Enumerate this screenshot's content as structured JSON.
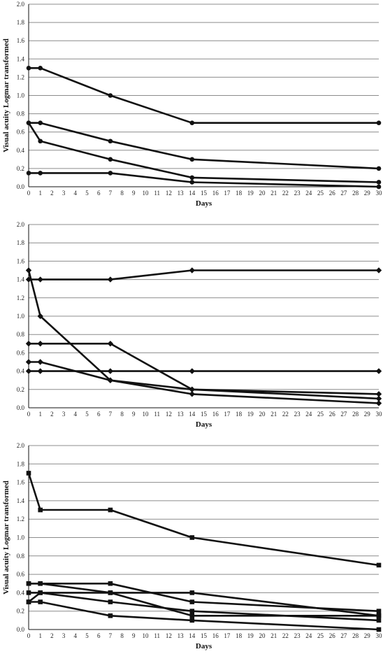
{
  "chart_data": [
    {
      "type": "line",
      "xlabel": "Days",
      "ylabel": "Visual acuity Logmar transformed",
      "ylim": [
        0,
        2
      ],
      "xlim": [
        0,
        30
      ],
      "y_ticks": [
        "0.0",
        "0.2",
        "0.4",
        "0.6",
        "0.8",
        "1.0",
        "1.2",
        "1.4",
        "1.6",
        "1.8",
        "2.0"
      ],
      "x_ticks": [
        "0",
        "1",
        "2",
        "3",
        "4",
        "5",
        "6",
        "7",
        "8",
        "9",
        "10",
        "11",
        "12",
        "13",
        "14",
        "15",
        "16",
        "17",
        "18",
        "19",
        "20",
        "21",
        "22",
        "23",
        "24",
        "25",
        "26",
        "27",
        "28",
        "29",
        "30"
      ],
      "grid": "horizontal",
      "marker": "circle",
      "series": [
        {
          "x": [
            0,
            1,
            7,
            14,
            30
          ],
          "y": [
            1.3,
            1.3,
            1.0,
            0.7,
            0.7
          ]
        },
        {
          "x": [
            0,
            1,
            7,
            14,
            30
          ],
          "y": [
            0.7,
            0.7,
            0.5,
            0.3,
            0.2
          ]
        },
        {
          "x": [
            0,
            1,
            7,
            14,
            30
          ],
          "y": [
            0.7,
            0.5,
            0.3,
            0.1,
            0.05
          ]
        },
        {
          "x": [
            0,
            1,
            7,
            14,
            30
          ],
          "y": [
            0.15,
            0.15,
            0.15,
            0.05,
            0.0
          ]
        }
      ]
    },
    {
      "type": "line",
      "xlabel": "Days",
      "ylabel": "",
      "ylim": [
        0,
        2
      ],
      "xlim": [
        0,
        30
      ],
      "y_ticks": [
        "0.0",
        "0.2",
        "0.4",
        "0.6",
        "0.8",
        "1.0",
        "1.2",
        "1.4",
        "1.6",
        "1.8",
        "2.0"
      ],
      "x_ticks": [
        "0",
        "1",
        "2",
        "3",
        "4",
        "5",
        "6",
        "7",
        "8",
        "9",
        "10",
        "11",
        "12",
        "13",
        "14",
        "15",
        "16",
        "17",
        "18",
        "19",
        "20",
        "21",
        "22",
        "23",
        "24",
        "25",
        "26",
        "27",
        "28",
        "29",
        "30"
      ],
      "grid": "horizontal",
      "marker": "diamond",
      "series": [
        {
          "x": [
            0,
            1,
            7,
            14,
            30
          ],
          "y": [
            1.4,
            1.4,
            1.4,
            1.5,
            1.5
          ]
        },
        {
          "x": [
            0,
            1,
            7,
            14,
            30
          ],
          "y": [
            1.5,
            1.0,
            0.3,
            0.2,
            0.15
          ]
        },
        {
          "x": [
            0,
            1,
            7,
            14,
            30
          ],
          "y": [
            0.7,
            0.7,
            0.7,
            0.2,
            0.1
          ]
        },
        {
          "x": [
            0,
            1,
            7,
            14,
            30
          ],
          "y": [
            0.5,
            0.5,
            0.3,
            0.15,
            0.05
          ]
        },
        {
          "x": [
            0,
            1,
            7,
            14,
            30
          ],
          "y": [
            0.4,
            0.4,
            0.4,
            0.4,
            0.4
          ]
        }
      ]
    },
    {
      "type": "line",
      "xlabel": "Days",
      "ylabel": "Visual acuity Logmar transformed",
      "ylim": [
        0,
        2
      ],
      "xlim": [
        0,
        30
      ],
      "y_ticks": [
        "0.0",
        "0.2",
        "0.4",
        "0.6",
        "0.8",
        "1.0",
        "1.2",
        "1.4",
        "1.6",
        "1.8",
        "2.0"
      ],
      "x_ticks": [
        "0",
        "1",
        "2",
        "3",
        "4",
        "5",
        "6",
        "7",
        "8",
        "9",
        "10",
        "11",
        "12",
        "13",
        "14",
        "15",
        "16",
        "17",
        "18",
        "19",
        "20",
        "21",
        "22",
        "23",
        "24",
        "25",
        "26",
        "27",
        "28",
        "29",
        "30"
      ],
      "grid": "horizontal",
      "marker": "square",
      "series": [
        {
          "x": [
            0,
            1,
            7,
            14,
            30
          ],
          "y": [
            1.7,
            1.3,
            1.3,
            1.0,
            0.7
          ]
        },
        {
          "x": [
            0,
            1,
            7,
            14,
            30
          ],
          "y": [
            0.5,
            0.5,
            0.5,
            0.3,
            0.2
          ]
        },
        {
          "x": [
            0,
            1,
            7,
            14,
            30
          ],
          "y": [
            0.5,
            0.5,
            0.4,
            0.15,
            0.15
          ]
        },
        {
          "x": [
            0,
            1,
            7,
            14,
            30
          ],
          "y": [
            0.4,
            0.4,
            0.4,
            0.4,
            0.15
          ]
        },
        {
          "x": [
            0,
            1,
            7,
            14,
            30
          ],
          "y": [
            0.3,
            0.4,
            0.3,
            0.2,
            0.1
          ]
        },
        {
          "x": [
            0,
            1,
            7,
            14,
            30
          ],
          "y": [
            0.3,
            0.3,
            0.15,
            0.1,
            0.0
          ]
        }
      ]
    }
  ]
}
